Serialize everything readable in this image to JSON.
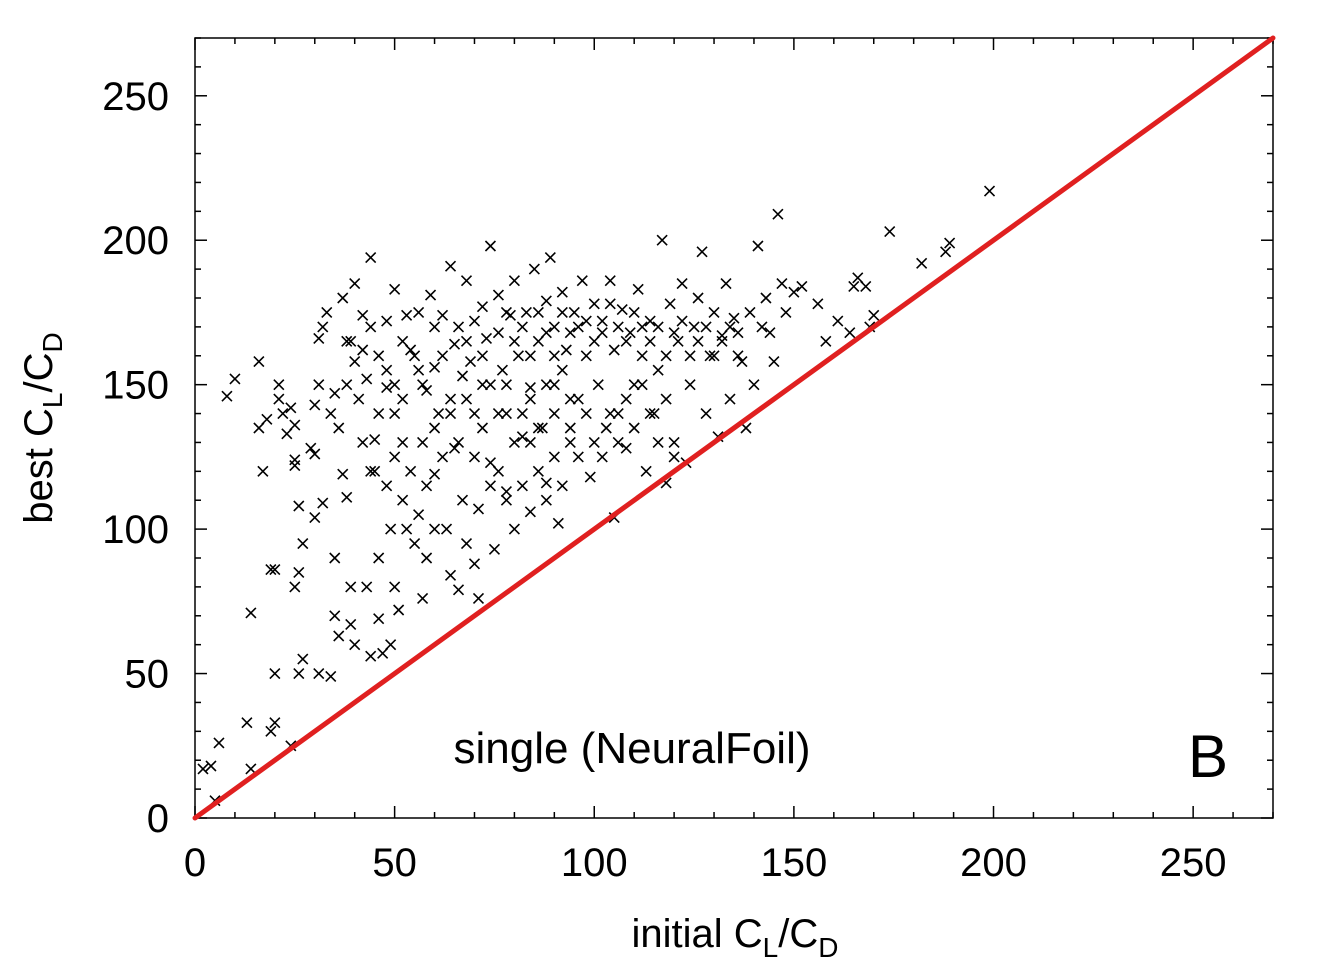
{
  "chart_data": {
    "type": "scatter",
    "xlabel": {
      "base": "initial C",
      "sub1": "L",
      "mid": "/C",
      "sub2": "D"
    },
    "ylabel": {
      "base": "best C",
      "sub1": "L",
      "mid": "/C",
      "sub2": "D"
    },
    "xlim": [
      0,
      270
    ],
    "ylim": [
      0,
      270
    ],
    "xticks": [
      0,
      50,
      100,
      150,
      200,
      250
    ],
    "yticks": [
      0,
      50,
      100,
      150,
      200,
      250
    ],
    "xtick_labels": [
      "0",
      "50",
      "100",
      "150",
      "200",
      "250"
    ],
    "ytick_labels": [
      "0",
      "50",
      "100",
      "150",
      "200",
      "250"
    ],
    "grid": false,
    "annotation": "single (NeuralFoil)",
    "panel_label": "B",
    "reference_line": {
      "from": [
        0,
        0
      ],
      "to": [
        270,
        270
      ],
      "color": "#e02020"
    },
    "marker": "x",
    "marker_color": "#000000",
    "series": [
      {
        "points": [
          [
            2,
            17
          ],
          [
            4,
            18
          ],
          [
            6,
            26
          ],
          [
            5,
            6
          ],
          [
            8,
            146
          ],
          [
            10,
            152
          ],
          [
            13,
            33
          ],
          [
            14,
            17
          ],
          [
            14,
            71
          ],
          [
            16,
            158
          ],
          [
            16,
            135
          ],
          [
            18,
            138
          ],
          [
            17,
            120
          ],
          [
            19,
            86
          ],
          [
            20,
            86
          ],
          [
            20,
            50
          ],
          [
            20,
            33
          ],
          [
            19,
            30
          ],
          [
            21,
            150
          ],
          [
            21,
            145
          ],
          [
            22,
            140
          ],
          [
            23,
            133
          ],
          [
            24,
            25
          ],
          [
            24,
            142
          ],
          [
            25,
            136
          ],
          [
            25,
            124
          ],
          [
            25,
            122
          ],
          [
            26,
            108
          ],
          [
            26,
            85
          ],
          [
            25,
            80
          ],
          [
            27,
            95
          ],
          [
            26,
            50
          ],
          [
            27,
            55
          ],
          [
            29,
            128
          ],
          [
            30,
            143
          ],
          [
            30,
            126
          ],
          [
            30,
            104
          ],
          [
            31,
            166
          ],
          [
            31,
            150
          ],
          [
            32,
            170
          ],
          [
            32,
            109
          ],
          [
            31,
            50
          ],
          [
            34,
            49
          ],
          [
            33,
            175
          ],
          [
            34,
            140
          ],
          [
            35,
            147
          ],
          [
            35,
            90
          ],
          [
            35,
            70
          ],
          [
            36,
            63
          ],
          [
            37,
            180
          ],
          [
            38,
            150
          ],
          [
            36,
            135
          ],
          [
            37,
            119
          ],
          [
            38,
            111
          ],
          [
            39,
            80
          ],
          [
            39,
            67
          ],
          [
            40,
            185
          ],
          [
            39,
            165
          ],
          [
            40,
            60
          ],
          [
            42,
            174
          ],
          [
            42,
            162
          ],
          [
            44,
            194
          ],
          [
            43,
            152
          ],
          [
            43,
            80
          ],
          [
            44,
            56
          ],
          [
            45,
            131
          ],
          [
            45,
            120
          ],
          [
            46,
            90
          ],
          [
            46,
            69
          ],
          [
            47,
            57
          ],
          [
            48,
            172
          ],
          [
            48,
            149
          ],
          [
            49,
            100
          ],
          [
            49,
            60
          ],
          [
            50,
            183
          ],
          [
            50,
            140
          ],
          [
            50,
            80
          ],
          [
            51,
            72
          ],
          [
            52,
            165
          ],
          [
            52,
            130
          ],
          [
            53,
            100
          ],
          [
            53,
            174
          ],
          [
            55,
            160
          ],
          [
            55,
            95
          ],
          [
            56,
            175
          ],
          [
            57,
            150
          ],
          [
            57,
            130
          ],
          [
            57,
            76
          ],
          [
            58,
            90
          ],
          [
            59,
            181
          ],
          [
            60,
            156
          ],
          [
            60,
            119
          ],
          [
            61,
            140
          ],
          [
            62,
            174
          ],
          [
            63,
            100
          ],
          [
            64,
            191
          ],
          [
            64,
            84
          ],
          [
            65,
            164
          ],
          [
            65,
            128
          ],
          [
            66,
            79
          ],
          [
            67,
            153
          ],
          [
            67,
            110
          ],
          [
            68,
            186
          ],
          [
            68,
            95
          ],
          [
            69,
            158
          ],
          [
            70,
            140
          ],
          [
            70,
            88
          ],
          [
            71,
            107
          ],
          [
            71,
            76
          ],
          [
            72,
            177
          ],
          [
            72,
            150
          ],
          [
            73,
            166
          ],
          [
            74,
            198
          ],
          [
            74,
            123
          ],
          [
            75,
            93
          ],
          [
            76,
            181
          ],
          [
            77,
            155
          ],
          [
            78,
            140
          ],
          [
            78,
            113
          ],
          [
            79,
            174
          ],
          [
            80,
            186
          ],
          [
            80,
            100
          ],
          [
            81,
            160
          ],
          [
            82,
            132
          ],
          [
            83,
            175
          ],
          [
            84,
            106
          ],
          [
            84,
            149
          ],
          [
            85,
            190
          ],
          [
            86,
            165
          ],
          [
            87,
            135
          ],
          [
            88,
            116
          ],
          [
            88,
            179
          ],
          [
            89,
            194
          ],
          [
            90,
            150
          ],
          [
            90,
            170
          ],
          [
            91,
            102
          ],
          [
            92,
            182
          ],
          [
            93,
            162
          ],
          [
            94,
            130
          ],
          [
            95,
            175
          ],
          [
            96,
            145
          ],
          [
            97,
            186
          ],
          [
            98,
            160
          ],
          [
            99,
            118
          ],
          [
            100,
            178
          ],
          [
            101,
            150
          ],
          [
            102,
            172
          ],
          [
            103,
            135
          ],
          [
            104,
            186
          ],
          [
            105,
            162
          ],
          [
            105,
            104
          ],
          [
            106,
            140
          ],
          [
            107,
            176
          ],
          [
            108,
            128
          ],
          [
            109,
            168
          ],
          [
            110,
            150
          ],
          [
            111,
            183
          ],
          [
            112,
            160
          ],
          [
            113,
            120
          ],
          [
            114,
            172
          ],
          [
            115,
            140
          ],
          [
            116,
            155
          ],
          [
            117,
            200
          ],
          [
            118,
            116
          ],
          [
            119,
            178
          ],
          [
            120,
            130
          ],
          [
            121,
            165
          ],
          [
            122,
            185
          ],
          [
            123,
            123
          ],
          [
            124,
            150
          ],
          [
            125,
            170
          ],
          [
            126,
            180
          ],
          [
            127,
            196
          ],
          [
            128,
            140
          ],
          [
            129,
            160
          ],
          [
            130,
            175
          ],
          [
            131,
            132
          ],
          [
            132,
            167
          ],
          [
            133,
            185
          ],
          [
            134,
            145
          ],
          [
            135,
            173
          ],
          [
            136,
            160
          ],
          [
            137,
            158
          ],
          [
            138,
            135
          ],
          [
            139,
            175
          ],
          [
            140,
            150
          ],
          [
            141,
            198
          ],
          [
            142,
            170
          ],
          [
            143,
            180
          ],
          [
            144,
            168
          ],
          [
            145,
            158
          ],
          [
            146,
            209
          ],
          [
            147,
            185
          ],
          [
            148,
            175
          ],
          [
            150,
            182
          ],
          [
            152,
            184
          ],
          [
            156,
            178
          ],
          [
            158,
            165
          ],
          [
            161,
            172
          ],
          [
            164,
            168
          ],
          [
            165,
            184
          ],
          [
            166,
            187
          ],
          [
            168,
            184
          ],
          [
            169,
            170
          ],
          [
            170,
            174
          ],
          [
            174,
            203
          ],
          [
            182,
            192
          ],
          [
            188,
            196
          ],
          [
            189,
            199
          ],
          [
            199,
            217
          ],
          [
            38,
            165
          ],
          [
            40,
            158
          ],
          [
            41,
            145
          ],
          [
            44,
            170
          ],
          [
            46,
            160
          ],
          [
            48,
            155
          ],
          [
            50,
            150
          ],
          [
            52,
            145
          ],
          [
            54,
            162
          ],
          [
            56,
            155
          ],
          [
            58,
            148
          ],
          [
            60,
            170
          ],
          [
            62,
            160
          ],
          [
            64,
            145
          ],
          [
            66,
            170
          ],
          [
            68,
            165
          ],
          [
            70,
            172
          ],
          [
            72,
            160
          ],
          [
            74,
            150
          ],
          [
            76,
            168
          ],
          [
            78,
            175
          ],
          [
            80,
            165
          ],
          [
            82,
            170
          ],
          [
            84,
            160
          ],
          [
            86,
            175
          ],
          [
            88,
            168
          ],
          [
            90,
            160
          ],
          [
            92,
            175
          ],
          [
            94,
            168
          ],
          [
            96,
            170
          ],
          [
            98,
            172
          ],
          [
            100,
            165
          ],
          [
            102,
            168
          ],
          [
            104,
            178
          ],
          [
            106,
            170
          ],
          [
            108,
            165
          ],
          [
            110,
            175
          ],
          [
            112,
            170
          ],
          [
            114,
            165
          ],
          [
            116,
            170
          ],
          [
            118,
            160
          ],
          [
            120,
            168
          ],
          [
            122,
            172
          ],
          [
            124,
            160
          ],
          [
            126,
            165
          ],
          [
            128,
            170
          ],
          [
            130,
            160
          ],
          [
            132,
            165
          ],
          [
            134,
            170
          ],
          [
            136,
            168
          ],
          [
            82,
            140
          ],
          [
            84,
            130
          ],
          [
            86,
            120
          ],
          [
            88,
            110
          ],
          [
            90,
            125
          ],
          [
            92,
            115
          ],
          [
            94,
            135
          ],
          [
            96,
            125
          ],
          [
            98,
            140
          ],
          [
            100,
            130
          ],
          [
            102,
            125
          ],
          [
            104,
            140
          ],
          [
            106,
            130
          ],
          [
            108,
            145
          ],
          [
            110,
            135
          ],
          [
            112,
            150
          ],
          [
            114,
            140
          ],
          [
            116,
            130
          ],
          [
            118,
            145
          ],
          [
            120,
            125
          ],
          [
            76,
            120
          ],
          [
            78,
            110
          ],
          [
            80,
            130
          ],
          [
            82,
            115
          ],
          [
            84,
            145
          ],
          [
            86,
            135
          ],
          [
            88,
            150
          ],
          [
            90,
            140
          ],
          [
            92,
            155
          ],
          [
            94,
            145
          ],
          [
            60,
            135
          ],
          [
            62,
            125
          ],
          [
            64,
            140
          ],
          [
            66,
            130
          ],
          [
            68,
            145
          ],
          [
            70,
            125
          ],
          [
            72,
            135
          ],
          [
            74,
            115
          ],
          [
            76,
            140
          ],
          [
            78,
            150
          ],
          [
            42,
            130
          ],
          [
            44,
            120
          ],
          [
            46,
            140
          ],
          [
            48,
            115
          ],
          [
            50,
            125
          ],
          [
            52,
            110
          ],
          [
            54,
            120
          ],
          [
            56,
            105
          ],
          [
            58,
            115
          ],
          [
            60,
            100
          ]
        ]
      }
    ]
  }
}
